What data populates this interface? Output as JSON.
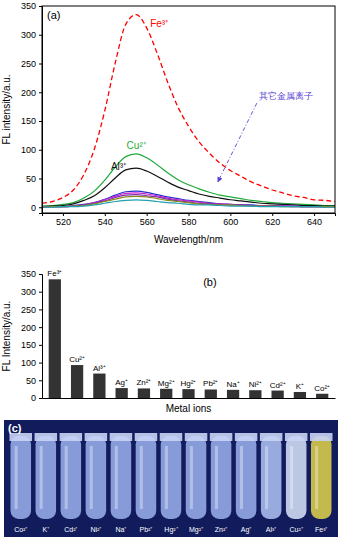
{
  "chart_data": [
    {
      "type": "line",
      "title": "(a)",
      "x_label": "Wavelength/nm",
      "y_label": "FL intensity/a.u.",
      "annotations": [
        "其它金属离子"
      ],
      "x": [
        510,
        515,
        520,
        525,
        530,
        535,
        540,
        545,
        550,
        555,
        560,
        565,
        570,
        575,
        580,
        585,
        590,
        595,
        600,
        605,
        610,
        615,
        620,
        625,
        630,
        635,
        640,
        645,
        650
      ],
      "series": [
        {
          "name": "Fe³⁺",
          "color": "#ff0000",
          "line_style": "dashed",
          "values": [
            7,
            10,
            17,
            30,
            57,
            101,
            168,
            251,
            318,
            335,
            312,
            268,
            218,
            174,
            141,
            114,
            94,
            77,
            64,
            54,
            44,
            37,
            30,
            25,
            20,
            17,
            13,
            12,
            10
          ]
        },
        {
          "name": "Cu²⁺",
          "color": "#1faa3a",
          "line_style": "solid",
          "values": [
            2,
            3,
            5,
            8,
            16,
            28,
            47,
            70,
            88,
            93,
            86,
            74,
            60,
            48,
            39,
            32,
            26,
            21,
            18,
            15,
            12,
            10,
            8,
            7,
            6,
            5,
            4,
            3,
            3
          ]
        },
        {
          "name": "Al³⁺",
          "color": "#111111",
          "line_style": "solid",
          "values": [
            1,
            2,
            3,
            6,
            12,
            20,
            34,
            51,
            65,
            68,
            63,
            54,
            44,
            35,
            29,
            23,
            19,
            16,
            13,
            11,
            9,
            7,
            6,
            5,
            4,
            3,
            3,
            2,
            2
          ]
        },
        {
          "color": "#2233cc",
          "line_style": "solid",
          "values": [
            1,
            1,
            1,
            3,
            5,
            8,
            14,
            21,
            27,
            28,
            26,
            22,
            18,
            15,
            12,
            10,
            8,
            6,
            5,
            4,
            4,
            3,
            3,
            2,
            2,
            1,
            1,
            1,
            1
          ]
        },
        {
          "color": "#cc22cc",
          "line_style": "solid",
          "values": [
            1,
            1,
            1,
            2,
            4,
            8,
            13,
            19,
            24,
            25,
            23,
            20,
            16,
            13,
            11,
            9,
            7,
            6,
            5,
            4,
            3,
            3,
            2,
            2,
            2,
            1,
            1,
            1,
            1
          ]
        },
        {
          "color": "#7a2ab0",
          "line_style": "solid",
          "values": [
            0,
            1,
            1,
            2,
            4,
            7,
            11,
            17,
            21,
            22,
            20,
            18,
            14,
            11,
            9,
            7,
            6,
            5,
            4,
            4,
            3,
            2,
            2,
            2,
            1,
            1,
            1,
            1,
            1
          ]
        },
        {
          "color": "#8a8a1a",
          "line_style": "solid",
          "values": [
            0,
            1,
            1,
            2,
            3,
            6,
            10,
            14,
            18,
            19,
            18,
            15,
            12,
            10,
            8,
            6,
            5,
            4,
            4,
            3,
            2,
            2,
            2,
            1,
            1,
            1,
            1,
            1,
            1
          ]
        },
        {
          "color": "#20a0b0",
          "line_style": "solid",
          "values": [
            0,
            0,
            1,
            1,
            2,
            4,
            7,
            10,
            12,
            13,
            12,
            10,
            8,
            7,
            5,
            4,
            4,
            3,
            2,
            2,
            2,
            1,
            1,
            1,
            1,
            1,
            1,
            0,
            0
          ]
        }
      ],
      "xlim": [
        510,
        650
      ],
      "xticks": [
        520,
        540,
        560,
        580,
        600,
        620,
        640
      ],
      "ylim": [
        -10,
        350
      ],
      "yticks": [
        0,
        50,
        100,
        150,
        200,
        250,
        300,
        350
      ]
    },
    {
      "type": "bar",
      "title": "(b)",
      "x_label": "Metal ions",
      "y_label": "FL Intensity/a.u.",
      "categories": [
        "Fe³⁺",
        "Cu²⁺",
        "Al³⁺",
        "Ag⁺",
        "Zn²⁺",
        "Mg²⁺",
        "Hg²⁺",
        "Pb²⁺",
        "Na⁺",
        "Ni²⁺",
        "Cd²⁺",
        "K⁺",
        "Co²⁺"
      ],
      "values": [
        335,
        93,
        69,
        28,
        27,
        26,
        25,
        24,
        23,
        22,
        21,
        17,
        12
      ],
      "color": "#333333",
      "tick_labels": "y",
      "ylim": [
        0,
        350
      ],
      "yticks": [
        0,
        50,
        100,
        150,
        200,
        250,
        300,
        350
      ]
    },
    {
      "type": "photo",
      "title": "(c)",
      "categories": [
        "Co²⁺",
        "K⁺",
        "Cd²⁺",
        "Ni²⁺",
        "Na⁺",
        "Pb²⁺",
        "Hg²⁺",
        "Mg²⁺",
        "Zn²⁺",
        "Ag⁺",
        "Al³⁺",
        "Cu²⁺",
        "Fe³⁺"
      ],
      "colors": [
        "#9db2ee",
        "#9db2ee",
        "#9db2ee",
        "#9db2ee",
        "#9db2ee",
        "#9db2ee",
        "#9db2ee",
        "#9db2ee",
        "#9db2ee",
        "#9db2ee",
        "#b2c4f4",
        "#dbe5fa",
        "#e4d54a"
      ]
    }
  ]
}
